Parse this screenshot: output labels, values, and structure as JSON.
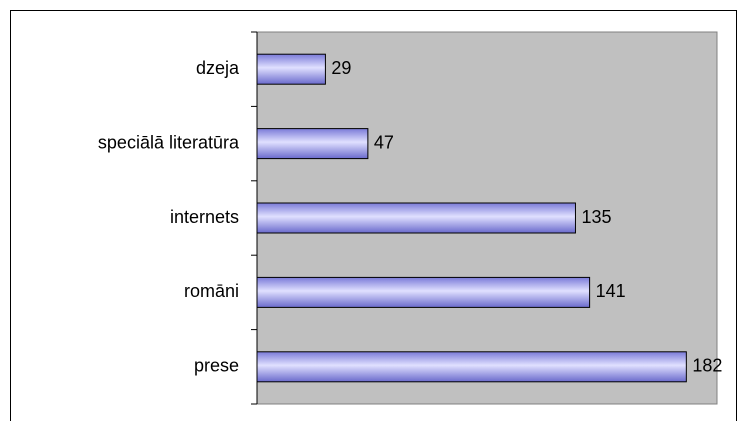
{
  "chart_data": {
    "type": "barh",
    "categories": [
      "dzeja",
      "speciālā literatūra",
      "internets",
      "romāni",
      "prese"
    ],
    "values": [
      29,
      47,
      135,
      141,
      182
    ],
    "color": "#9999ff",
    "xlim": [
      0,
      195
    ]
  }
}
